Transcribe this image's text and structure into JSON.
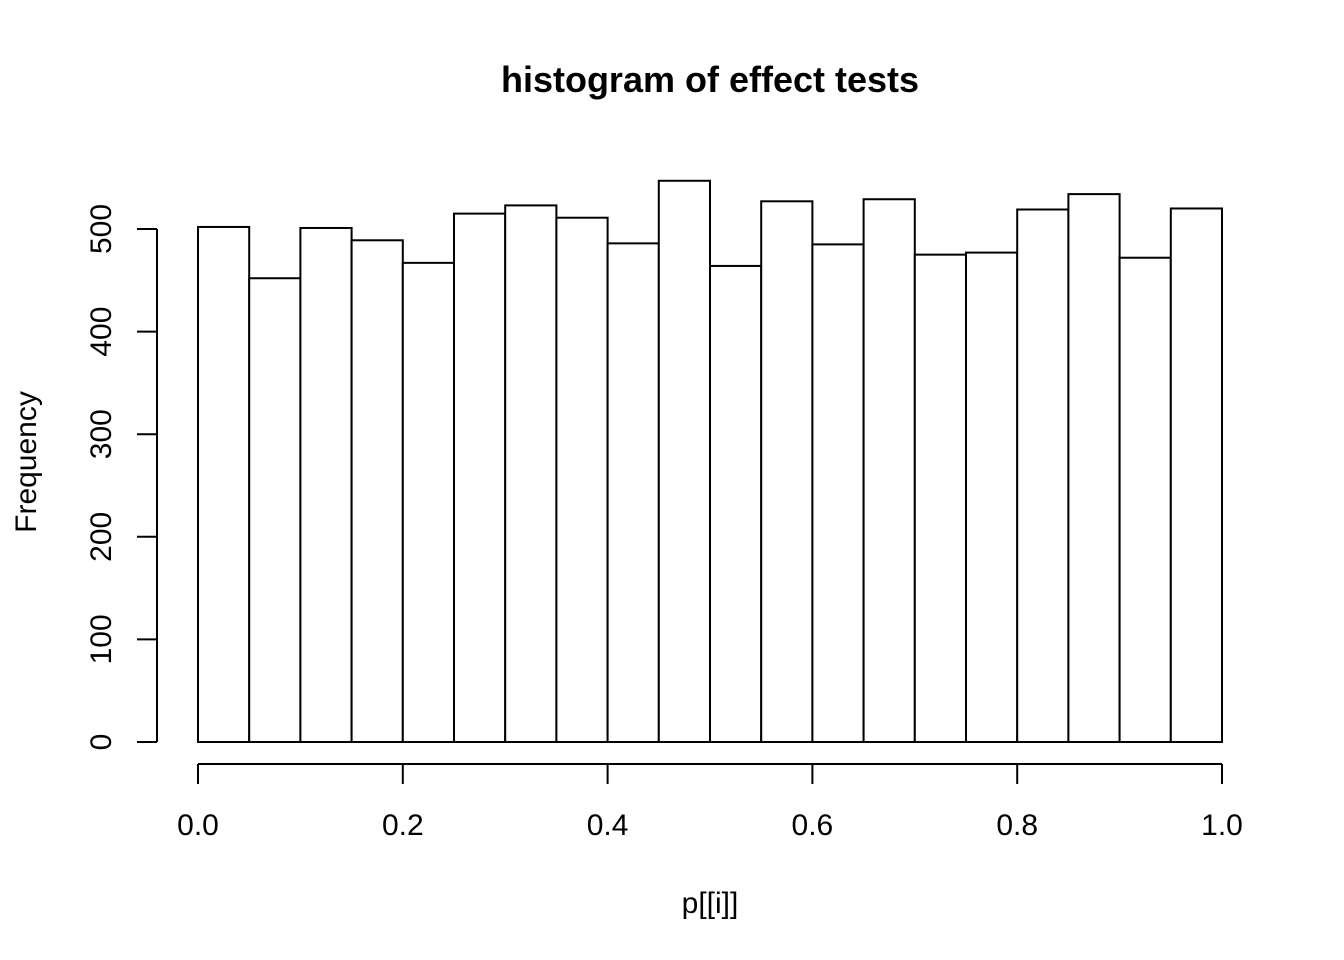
{
  "chart_data": {
    "type": "bar",
    "subtype": "histogram",
    "title": "histogram of effect tests",
    "xlabel": "p[[i]]",
    "ylabel": "Frequency",
    "bin_edges": [
      0.0,
      0.05,
      0.1,
      0.15,
      0.2,
      0.25,
      0.3,
      0.35,
      0.4,
      0.45,
      0.5,
      0.55,
      0.6,
      0.65,
      0.7,
      0.75,
      0.8,
      0.85,
      0.9,
      0.95,
      1.0
    ],
    "values": [
      502,
      452,
      501,
      489,
      467,
      515,
      523,
      511,
      486,
      547,
      464,
      527,
      485,
      529,
      475,
      477,
      519,
      534,
      472,
      520
    ],
    "xlim": [
      0.0,
      1.0
    ],
    "ylim": [
      0,
      547
    ],
    "x_ticks": [
      0.0,
      0.2,
      0.4,
      0.6,
      0.8,
      1.0
    ],
    "x_tick_labels": [
      "0.0",
      "0.2",
      "0.4",
      "0.6",
      "0.8",
      "1.0"
    ],
    "y_ticks": [
      0,
      100,
      200,
      300,
      400,
      500
    ],
    "y_tick_labels": [
      "0",
      "100",
      "200",
      "300",
      "400",
      "500"
    ],
    "grid": false,
    "legend": "none",
    "colors": {
      "bar_fill": "#ffffff",
      "bar_stroke": "#000000",
      "text": "#000000"
    }
  }
}
